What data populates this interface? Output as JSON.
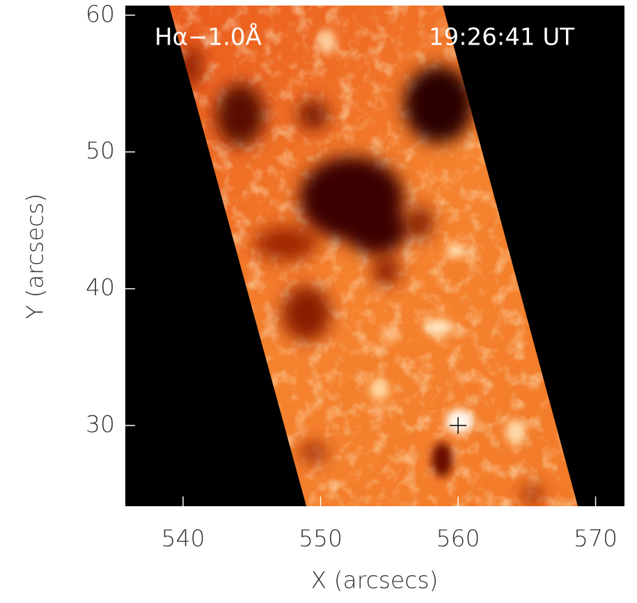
{
  "chart_data": {
    "type": "image",
    "annotations": [
      "Hα−1.0Å",
      "19:26:41 UT"
    ],
    "xlabel": "X (arcsecs)",
    "ylabel": "Y (arcsecs)",
    "xlim": [
      535.8,
      572.1
    ],
    "ylim": [
      24.1,
      60.7
    ],
    "xticks": [
      540,
      550,
      560,
      570
    ],
    "yticks": [
      30,
      40,
      50,
      60
    ],
    "points": {
      "x": [
        560
      ],
      "y": [
        30
      ],
      "color": "#000000"
    }
  }
}
